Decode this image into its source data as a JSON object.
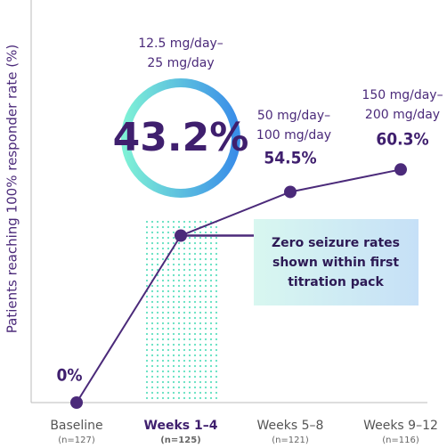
{
  "chart_data": {
    "type": "line",
    "y_label": "Patients reaching 100% responder rate (%)",
    "categories": [
      "Baseline",
      "Weeks 1–4",
      "Weeks 5–8",
      "Weeks 9–12"
    ],
    "n_labels": [
      "(n=127)",
      "(n=125)",
      "(n=121)",
      "(n=116)"
    ],
    "dose_labels": [
      null,
      [
        "12.5 mg/day–",
        "25 mg/day"
      ],
      [
        "50 mg/day–",
        "100 mg/day"
      ],
      [
        "150 mg/day–",
        "200 mg/day"
      ]
    ],
    "values": [
      0,
      43.2,
      54.5,
      60.3
    ],
    "value_labels": [
      "0%",
      "43.2%",
      "54.5%",
      "60.3%"
    ],
    "color": "#4b2a7a",
    "ylim": [
      0,
      100
    ],
    "callout": [
      "Zero seizure rates",
      "shown within first",
      "titration pack"
    ]
  }
}
